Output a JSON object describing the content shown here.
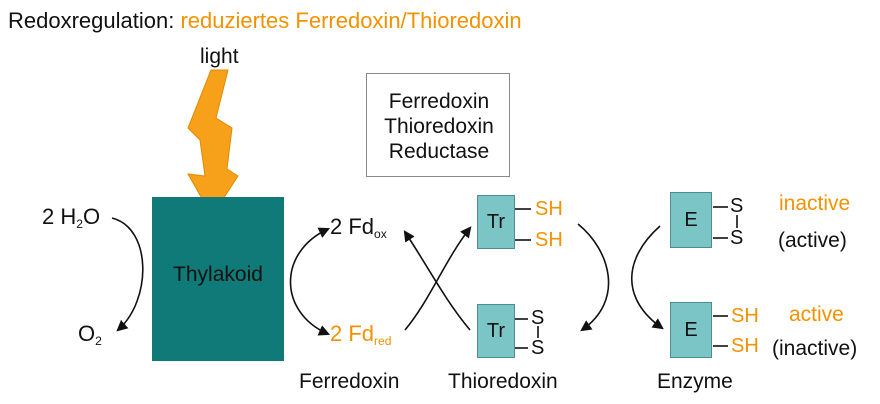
{
  "header": {
    "prefix": "Redoxregulation: ",
    "highlight": "reduziertes Ferredoxin/Thioredoxin"
  },
  "light": {
    "label": "light"
  },
  "enzyme_box": {
    "lines": [
      "Ferredoxin",
      "Thioredoxin",
      "Reductase"
    ]
  },
  "thylakoid": {
    "label": "Thylakoid"
  },
  "water": {
    "coef": "2 H",
    "sub": "2",
    "tail": "O"
  },
  "oxygen": {
    "base": "O",
    "sub": "2"
  },
  "ferredoxin": {
    "ox": {
      "base": "2 Fd",
      "sub": "ox"
    },
    "red": {
      "base": "2 Fd",
      "sub": "red"
    },
    "caption": "Ferredoxin"
  },
  "thioredoxin": {
    "box": "Tr",
    "sh": "SH",
    "s": "S",
    "caption": "Thioredoxin"
  },
  "enzyme": {
    "box": "E",
    "sh": "SH",
    "s": "S",
    "caption": "Enzyme",
    "top_state": "inactive",
    "top_alt": "(active)",
    "bottom_state": "active",
    "bottom_alt": "(inactive)"
  },
  "colors": {
    "accent": "#f39200",
    "thylakoid": "#0f7a78",
    "box_fill": "#7cc5c7"
  }
}
